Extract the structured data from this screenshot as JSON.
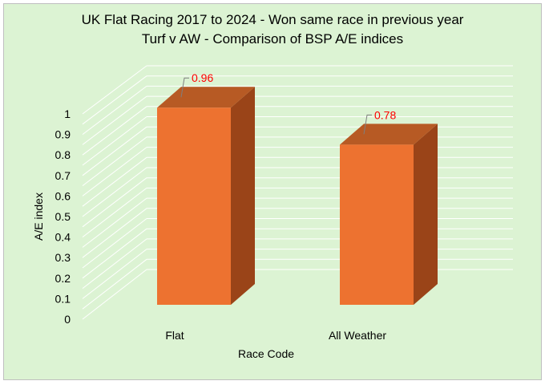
{
  "chart_data": {
    "type": "bar",
    "title": "UK Flat Racing 2017 to 2024 - Won same race in previous year",
    "subtitle": "Turf v AW - Comparison of BSP A/E indices",
    "xlabel": "Race Code",
    "ylabel": "A/E index",
    "categories": [
      "Flat",
      "All Weather"
    ],
    "values": [
      0.96,
      0.78
    ],
    "data_labels": [
      "0.96",
      "0.78"
    ],
    "ylim": [
      0,
      1
    ],
    "yticks": [
      "0",
      "0.1",
      "0.2",
      "0.3",
      "0.4",
      "0.5",
      "0.6",
      "0.7",
      "0.8",
      "0.9",
      "1"
    ],
    "grid": true,
    "three_d": true,
    "colors": {
      "background": "#dcf3d3",
      "bar_front": "#ed7230",
      "bar_side": "#9a4418",
      "bar_top": "#b75a24",
      "data_label": "#ff0000",
      "gridline": "#ffffff"
    }
  }
}
